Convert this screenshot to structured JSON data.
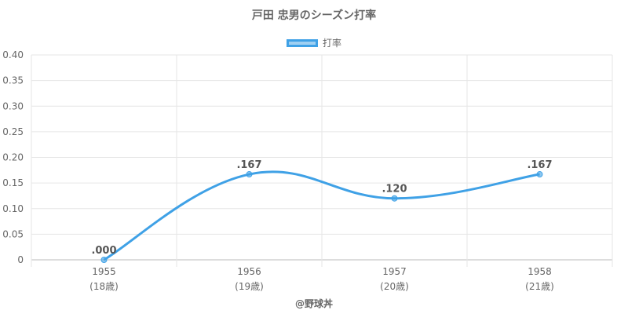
{
  "chart_data": {
    "type": "line",
    "title": "戸田 忠男のシーズン打率",
    "categories": [
      "1955",
      "1956",
      "1957",
      "1958"
    ],
    "category_sublabels": [
      "(18歳)",
      "(19歳)",
      "(20歳)",
      "(21歳)"
    ],
    "series": [
      {
        "name": "打率",
        "values": [
          0.0,
          0.167,
          0.12,
          0.167
        ],
        "data_labels": [
          ".000",
          ".167",
          ".120",
          ".167"
        ],
        "color": "#3fa1e6"
      }
    ],
    "ylim": [
      0,
      0.4
    ],
    "yticks": [
      "0",
      "0.05",
      "0.10",
      "0.15",
      "0.20",
      "0.25",
      "0.30",
      "0.35",
      "0.40"
    ],
    "ytick_values": [
      0,
      0.05,
      0.1,
      0.15,
      0.2,
      0.25,
      0.3,
      0.35,
      0.4
    ],
    "grid": true,
    "legend": "top-center",
    "smooth": true
  },
  "credit": "@野球丼"
}
